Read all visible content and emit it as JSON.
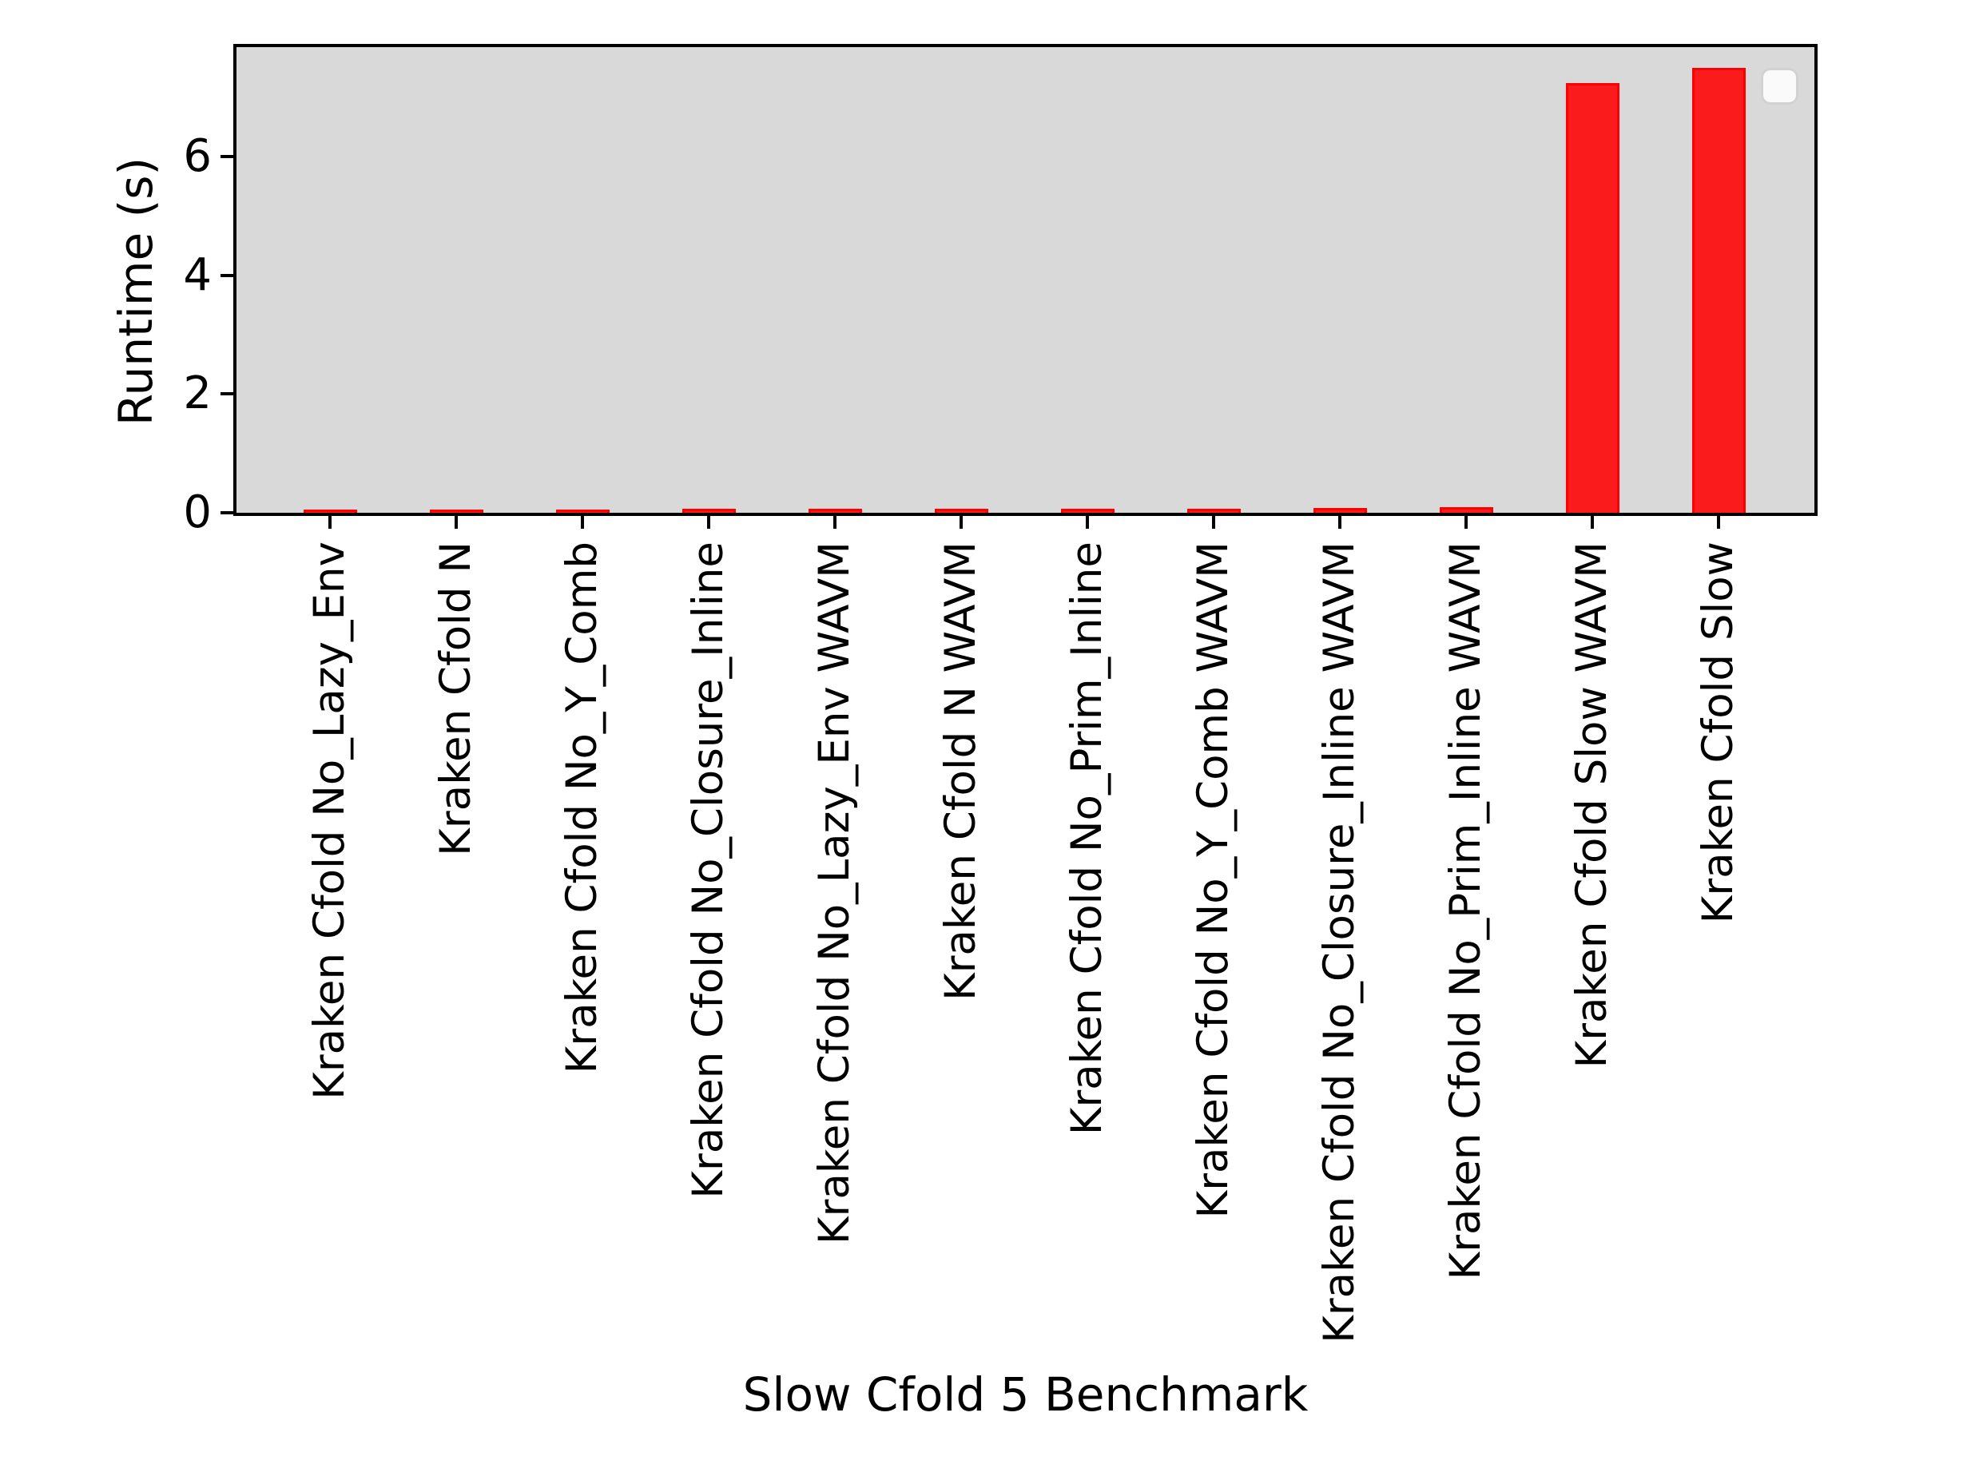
{
  "chart_data": {
    "type": "bar",
    "title": "",
    "xlabel": "Slow Cfold 5 Benchmark",
    "ylabel": "Runtime (s)",
    "categories": [
      "Kraken Cfold No_Lazy_Env",
      "Kraken Cfold N",
      "Kraken Cfold No_Y_Comb",
      "Kraken Cfold No_Closure_Inline",
      "Kraken Cfold No_Lazy_Env WAVM",
      "Kraken Cfold N WAVM",
      "Kraken Cfold No_Prim_Inline",
      "Kraken Cfold No_Y_Comb WAVM",
      "Kraken Cfold No_Closure_Inline WAVM",
      "Kraken Cfold No_Prim_Inline WAVM",
      "Kraken Cfold Slow WAVM",
      "Kraken Cfold Slow"
    ],
    "values": [
      0.06,
      0.05,
      0.06,
      0.065,
      0.065,
      0.065,
      0.07,
      0.07,
      0.08,
      0.09,
      7.25,
      7.5
    ],
    "yticks": [
      0,
      2,
      4,
      6
    ],
    "ylim": [
      0,
      7.85
    ],
    "bar_color": "#ff0000",
    "bar_fill_alpha": 0.87,
    "plot_background": "#d9d9d9",
    "grid": false,
    "legend": {
      "position": "upper right",
      "entries": []
    }
  }
}
